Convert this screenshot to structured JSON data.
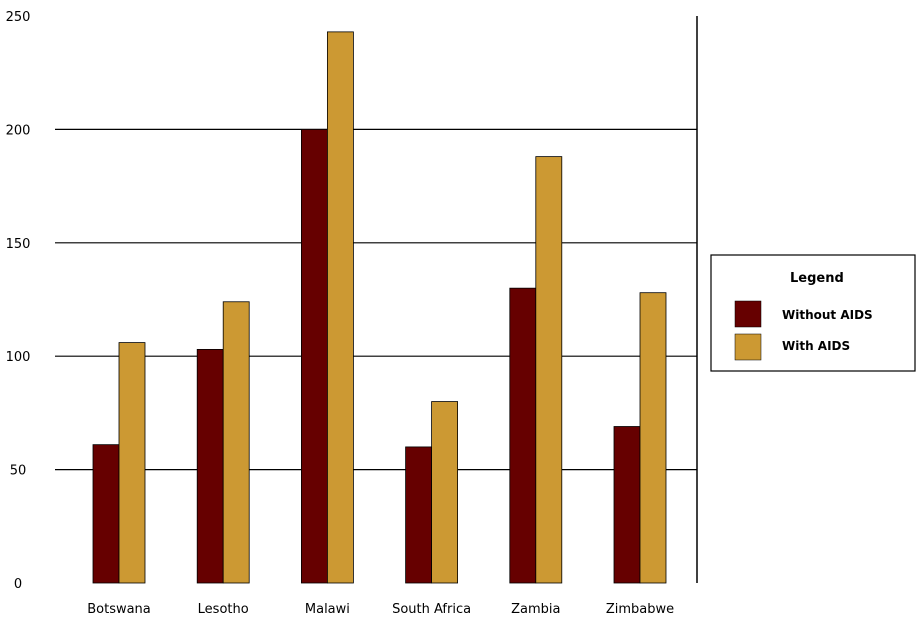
{
  "chart_data": {
    "type": "bar",
    "categories": [
      "Botswana",
      "Lesotho",
      "Malawi",
      "South Africa",
      "Zambia",
      "Zimbabwe"
    ],
    "series": [
      {
        "name": "Without AIDS",
        "values": [
          61,
          103,
          200,
          60,
          130,
          69
        ],
        "color": "#660000"
      },
      {
        "name": "With AIDS",
        "values": [
          106,
          124,
          243,
          80,
          188,
          128
        ],
        "color": "#cc9933"
      }
    ],
    "y_ticks": [
      0,
      50,
      100,
      150,
      200,
      250
    ],
    "ylim": [
      0,
      250
    ],
    "grid": true,
    "legend": {
      "title": "Legend",
      "position": "right"
    }
  }
}
